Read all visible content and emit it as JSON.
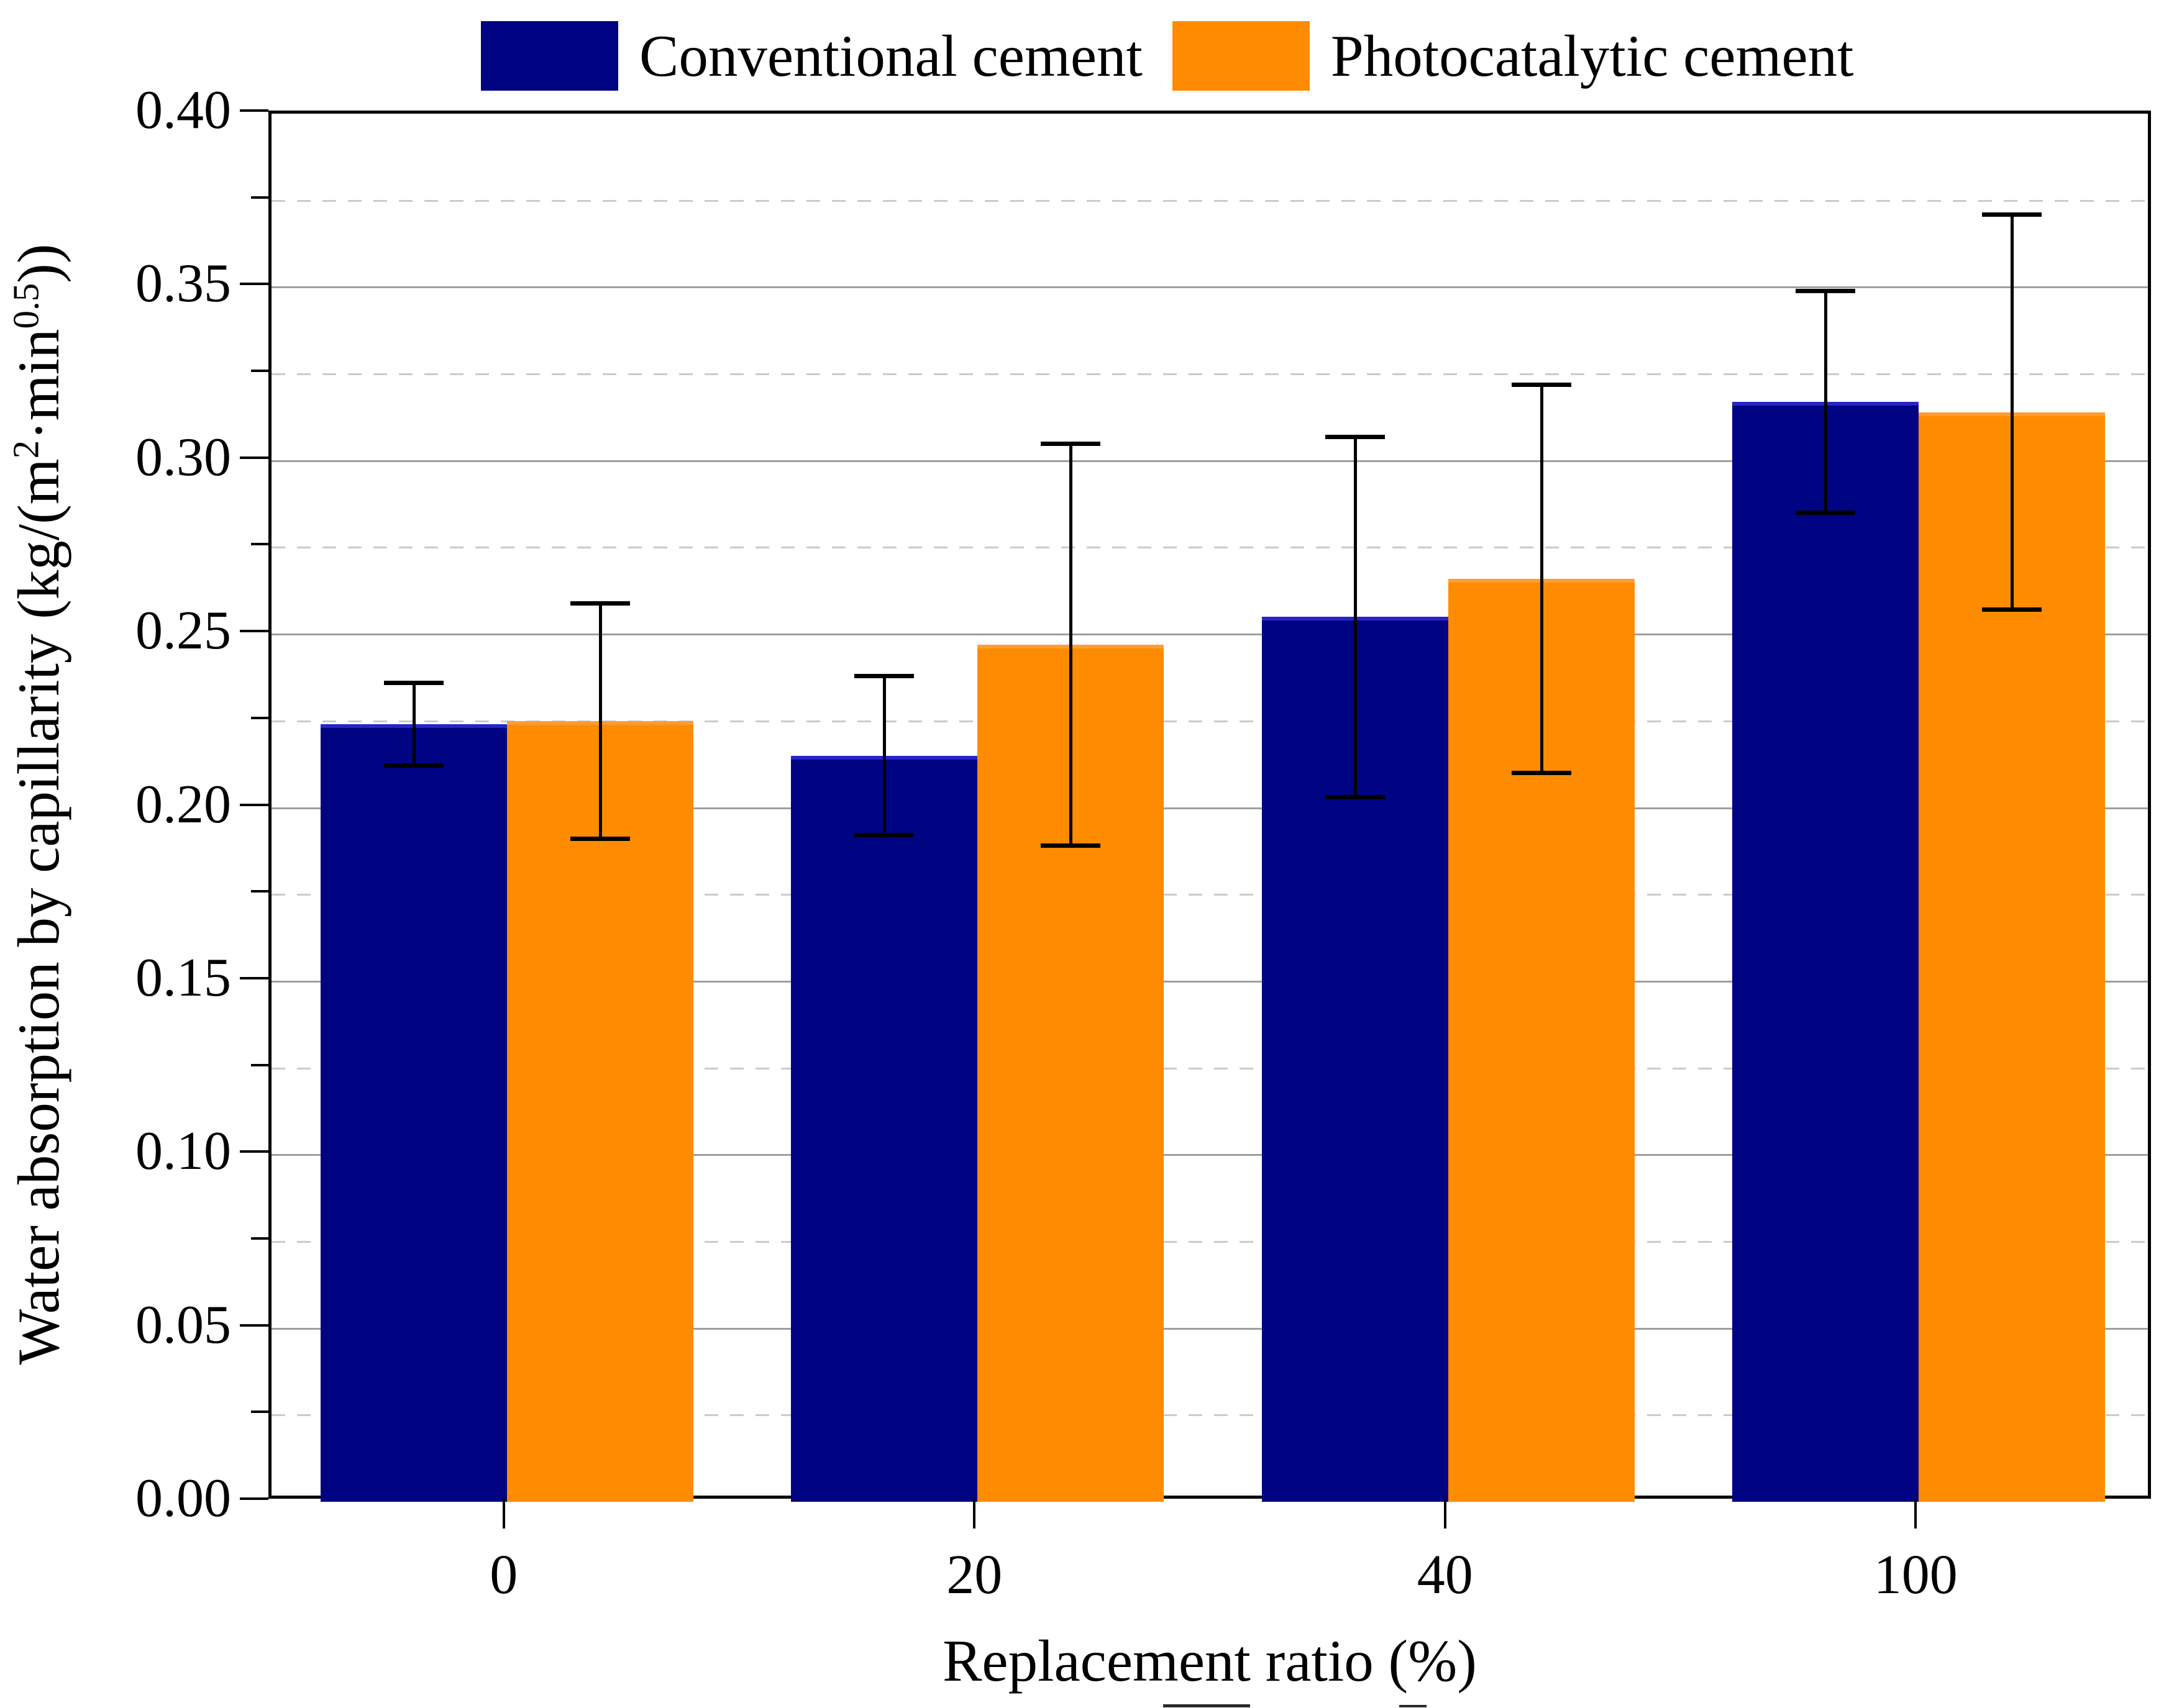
{
  "figure": {
    "x_axis_title": "Replacement ratio (%)",
    "y_axis_title_parts": {
      "prefix": "Water absorption by capillarity (kg/(m",
      "sup1": "2",
      "mid": "·min",
      "sup2": "0.5",
      "suffix": "))"
    }
  },
  "chart_data": {
    "type": "bar",
    "title": "",
    "xlabel": "Replacement ratio (%)",
    "ylabel": "Water absorption by capillarity (kg/(m^2·min^0.5))",
    "categories": [
      "0",
      "20",
      "40",
      "100"
    ],
    "ylim": [
      0.0,
      0.4
    ],
    "y_major_step": 0.05,
    "y_minor_step": 0.025,
    "y_tick_labels": [
      "0.00",
      "0.05",
      "0.10",
      "0.15",
      "0.20",
      "0.25",
      "0.30",
      "0.35",
      "0.40"
    ],
    "grid": "horizontal only: solid gray major lines every 0.05, dashed light-gray minor lines every 0.025",
    "legend_position": "top, above plot, horizontal",
    "error_bars": "symmetric, black caps",
    "series": [
      {
        "name": "Conventional cement",
        "color": "#000482",
        "values": [
          0.224,
          0.215,
          0.255,
          0.317
        ],
        "errors": [
          0.012,
          0.023,
          0.052,
          0.032
        ]
      },
      {
        "name": "Photocatalytic cement",
        "color": "#FF8C00",
        "values": [
          0.225,
          0.247,
          0.266,
          0.314
        ],
        "errors": [
          0.034,
          0.058,
          0.056,
          0.057
        ]
      }
    ]
  }
}
